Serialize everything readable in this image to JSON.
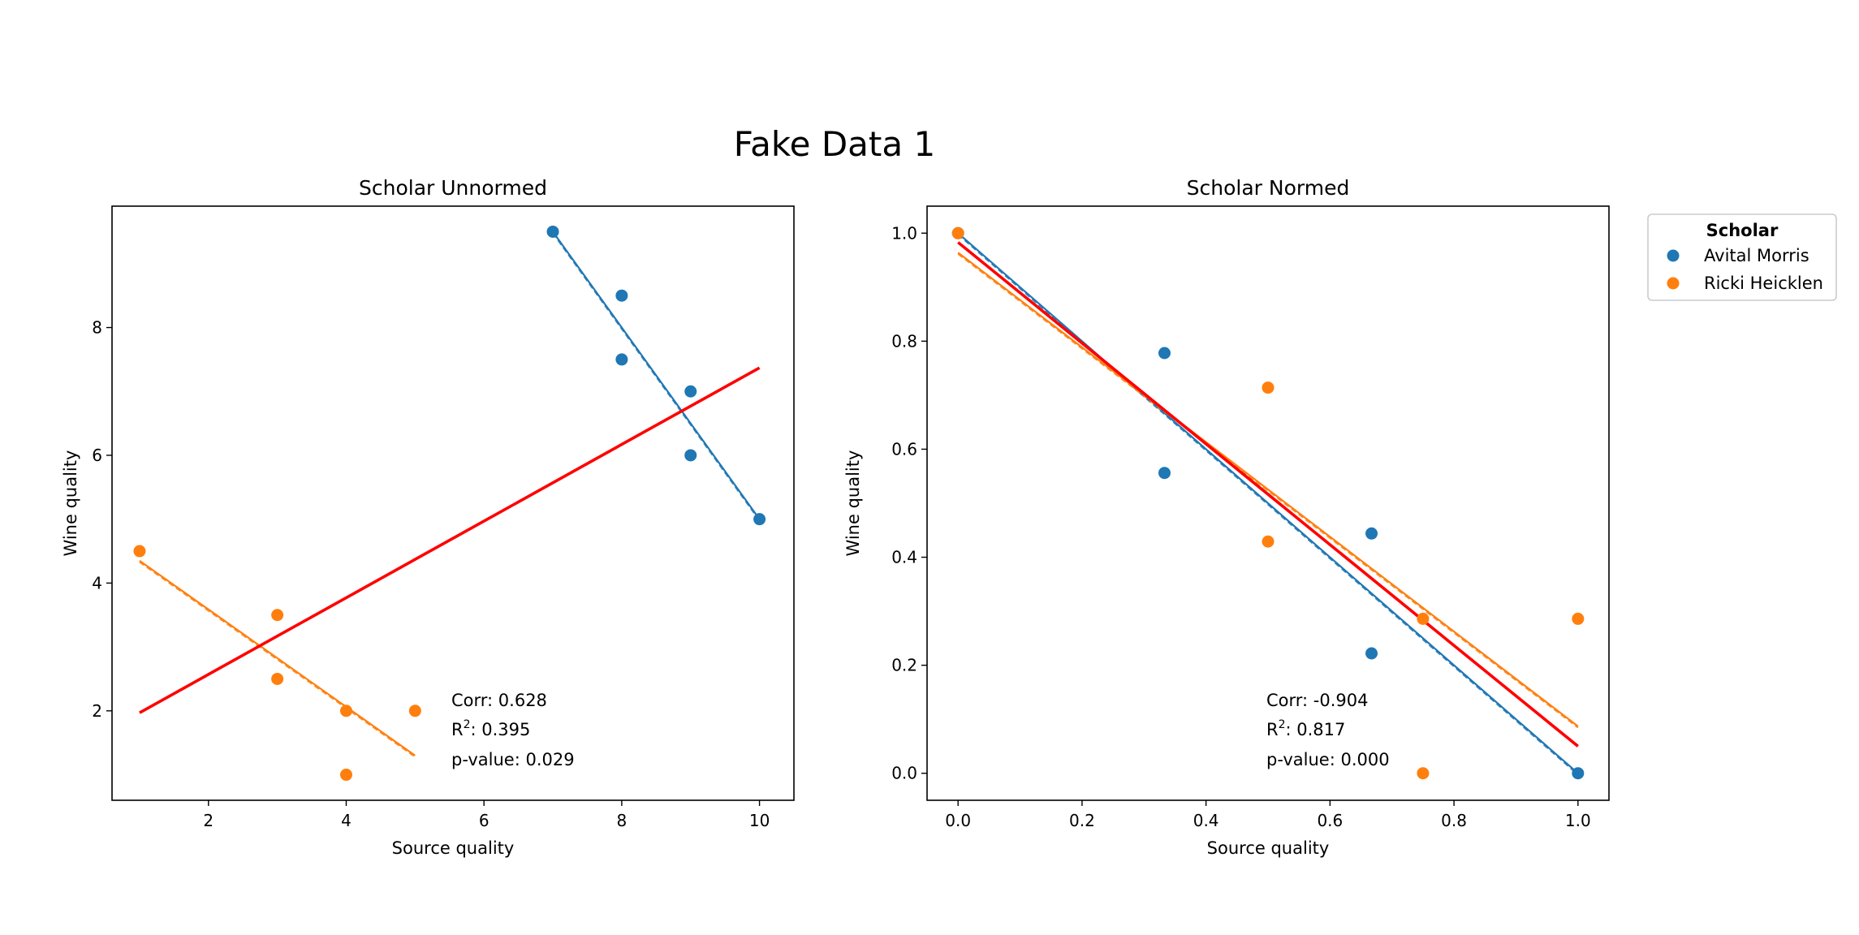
{
  "figure": {
    "suptitle": "Fake Data 1"
  },
  "legend": {
    "title": "Scholar",
    "placement": "outside-upper-right",
    "entries": [
      {
        "label": "Avital Morris",
        "color": "#1f77b4"
      },
      {
        "label": "Ricki Heicklen",
        "color": "#ff7f0e"
      }
    ]
  },
  "chart_data": [
    {
      "type": "scatter",
      "title": "Scholar Unnormed",
      "xlabel": "Source quality",
      "ylabel": "Wine quality",
      "xlim": [
        0.6,
        10.5
      ],
      "ylim": [
        0.6,
        9.9
      ],
      "xticks": [
        2,
        4,
        6,
        8,
        10
      ],
      "xtick_labels": [
        "2",
        "4",
        "6",
        "8",
        "10"
      ],
      "yticks": [
        2,
        4,
        6,
        8
      ],
      "ytick_labels": [
        "2",
        "4",
        "6",
        "8"
      ],
      "grid": false,
      "series": [
        {
          "name": "Avital Morris",
          "color": "#1f77b4",
          "points": [
            [
              7,
              9.5
            ],
            [
              8,
              8.5
            ],
            [
              8,
              7.5
            ],
            [
              9,
              7
            ],
            [
              9,
              6
            ],
            [
              10,
              5
            ]
          ],
          "fit": {
            "x": [
              7,
              10
            ],
            "y": [
              9.5,
              5
            ]
          }
        },
        {
          "name": "Ricki Heicklen",
          "color": "#ff7f0e",
          "points": [
            [
              1,
              4.5
            ],
            [
              3,
              3.5
            ],
            [
              3,
              2.5
            ],
            [
              4,
              2
            ],
            [
              4,
              1
            ],
            [
              5,
              2
            ]
          ],
          "fit": {
            "x": [
              1,
              5
            ],
            "y": [
              4.35,
              1.3
            ]
          }
        }
      ],
      "overall_fit": {
        "color": "#ff0000",
        "x": [
          1,
          10
        ],
        "y": [
          1.97,
          7.37
        ]
      },
      "stats": {
        "corr": "Corr: 0.628",
        "r2_prefix": "R",
        "r2_sup": "2",
        "r2_value": ": 0.395",
        "pvalue": "p-value: 0.029"
      }
    },
    {
      "type": "scatter",
      "title": "Scholar Normed",
      "xlabel": "Source quality",
      "ylabel": "Wine quality",
      "xlim": [
        -0.05,
        1.05
      ],
      "ylim": [
        -0.05,
        1.05
      ],
      "xticks": [
        0.0,
        0.2,
        0.4,
        0.6,
        0.8,
        1.0
      ],
      "xtick_labels": [
        "0.0",
        "0.2",
        "0.4",
        "0.6",
        "0.8",
        "1.0"
      ],
      "yticks": [
        0.0,
        0.2,
        0.4,
        0.6,
        0.8,
        1.0
      ],
      "ytick_labels": [
        "0.0",
        "0.2",
        "0.4",
        "0.6",
        "0.8",
        "1.0"
      ],
      "grid": false,
      "series": [
        {
          "name": "Avital Morris",
          "color": "#1f77b4",
          "points": [
            [
              0,
              1.0
            ],
            [
              0.333,
              0.778
            ],
            [
              0.333,
              0.556
            ],
            [
              0.667,
              0.444
            ],
            [
              0.667,
              0.222
            ],
            [
              1.0,
              0.0
            ]
          ],
          "fit": {
            "x": [
              0,
              1
            ],
            "y": [
              1.0,
              0.0
            ]
          }
        },
        {
          "name": "Ricki Heicklen",
          "color": "#ff7f0e",
          "points": [
            [
              0,
              1.0
            ],
            [
              0.5,
              0.714
            ],
            [
              0.5,
              0.429
            ],
            [
              0.75,
              0.286
            ],
            [
              0.75,
              0.0
            ],
            [
              1.0,
              0.286
            ]
          ],
          "fit": {
            "x": [
              0,
              1
            ],
            "y": [
              0.964,
              0.087
            ]
          }
        }
      ],
      "overall_fit": {
        "color": "#ff0000",
        "x": [
          0,
          1
        ],
        "y": [
          0.983,
          0.05
        ]
      },
      "stats": {
        "corr": "Corr: -0.904",
        "r2_prefix": "R",
        "r2_sup": "2",
        "r2_value": ": 0.817",
        "pvalue": "p-value: 0.000"
      }
    }
  ]
}
